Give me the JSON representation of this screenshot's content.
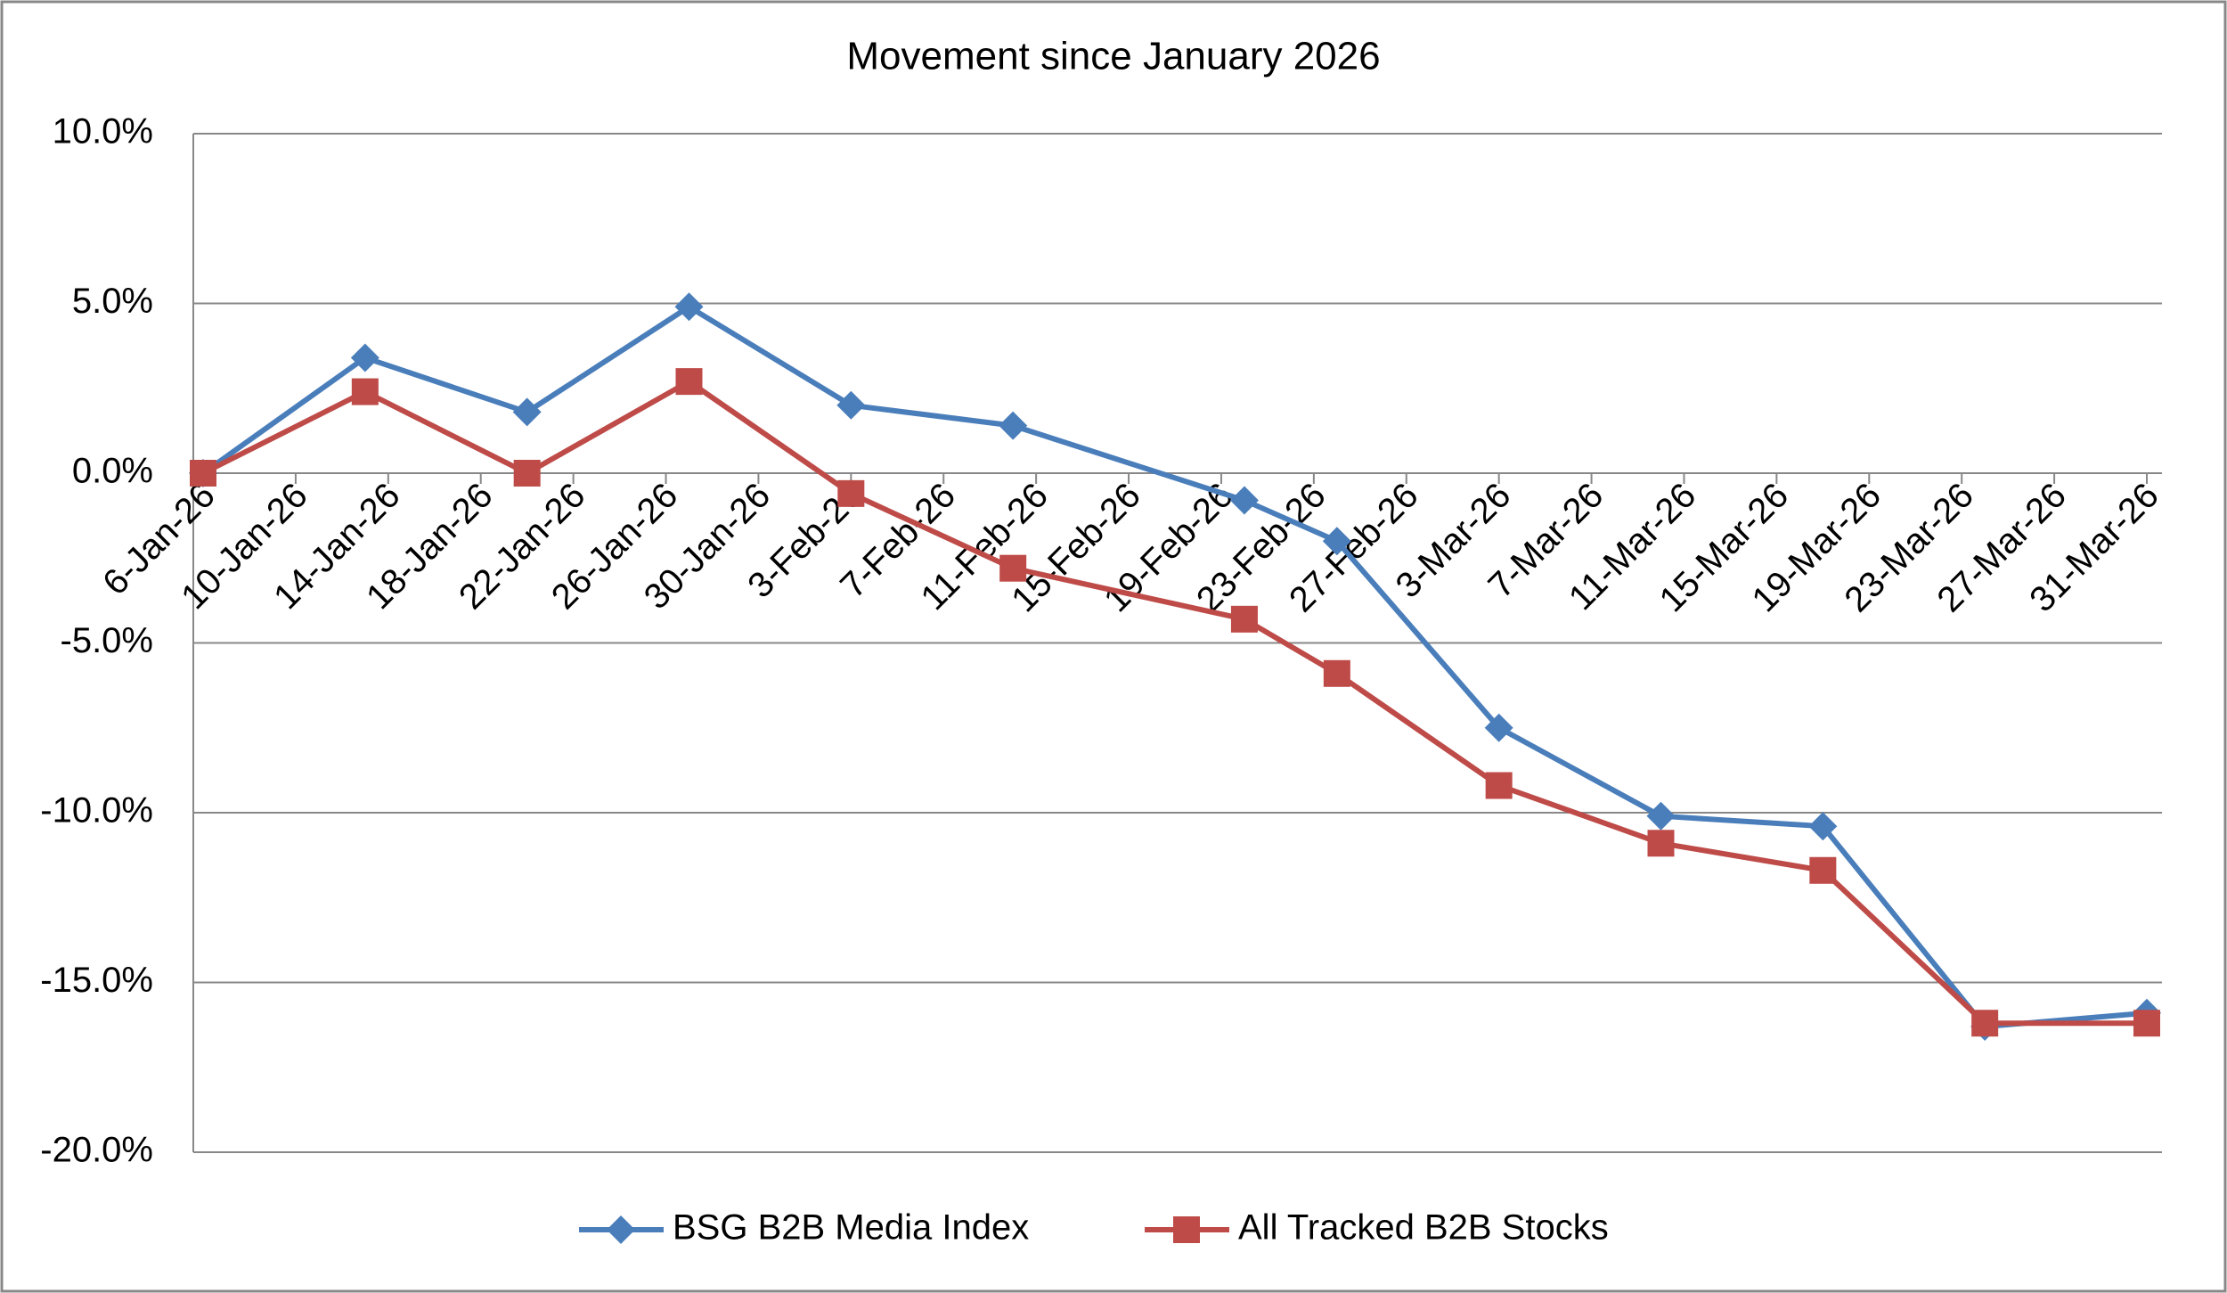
{
  "chart_data": {
    "type": "line",
    "title": "Movement since January 2026",
    "x": [
      "2026-01-06",
      "2026-01-13",
      "2026-01-20",
      "2026-01-27",
      "2026-02-03",
      "2026-02-10",
      "2026-02-20",
      "2026-02-24",
      "2026-03-03",
      "2026-03-10",
      "2026-03-17",
      "2026-03-24",
      "2026-03-31"
    ],
    "series": [
      {
        "name": "BSG B2B Media Index",
        "color": "#4a7ebb",
        "marker": "diamond",
        "values": [
          0,
          3.4,
          1.8,
          4.9,
          2.0,
          1.4,
          -0.8,
          -2.0,
          -7.5,
          -10.1,
          -10.4,
          -16.3,
          -15.9
        ]
      },
      {
        "name": "All Tracked B2B Stocks",
        "color": "#be4b48",
        "marker": "square",
        "values": [
          0,
          2.4,
          0.0,
          2.7,
          -0.6,
          -2.8,
          -4.3,
          -5.9,
          -9.2,
          -10.9,
          -11.7,
          -16.2,
          -16.2
        ]
      }
    ],
    "xlim": [
      "2026-01-06",
      "2026-03-31"
    ],
    "xticks": [
      {
        "value": "2026-01-06",
        "label": "6-Jan-26"
      },
      {
        "value": "2026-01-10",
        "label": "10-Jan-26"
      },
      {
        "value": "2026-01-14",
        "label": "14-Jan-26"
      },
      {
        "value": "2026-01-18",
        "label": "18-Jan-26"
      },
      {
        "value": "2026-01-22",
        "label": "22-Jan-26"
      },
      {
        "value": "2026-01-26",
        "label": "26-Jan-26"
      },
      {
        "value": "2026-01-30",
        "label": "30-Jan-26"
      },
      {
        "value": "2026-02-03",
        "label": "3-Feb-26"
      },
      {
        "value": "2026-02-07",
        "label": "7-Feb-26"
      },
      {
        "value": "2026-02-11",
        "label": "11-Feb-26"
      },
      {
        "value": "2026-02-15",
        "label": "15-Feb-26"
      },
      {
        "value": "2026-02-19",
        "label": "19-Feb-26"
      },
      {
        "value": "2026-02-23",
        "label": "23-Feb-26"
      },
      {
        "value": "2026-02-27",
        "label": "27-Feb-26"
      },
      {
        "value": "2026-03-03",
        "label": "3-Mar-26"
      },
      {
        "value": "2026-03-07",
        "label": "7-Mar-26"
      },
      {
        "value": "2026-03-11",
        "label": "11-Mar-26"
      },
      {
        "value": "2026-03-15",
        "label": "15-Mar-26"
      },
      {
        "value": "2026-03-19",
        "label": "19-Mar-26"
      },
      {
        "value": "2026-03-23",
        "label": "23-Mar-26"
      },
      {
        "value": "2026-03-27",
        "label": "27-Mar-26"
      },
      {
        "value": "2026-03-31",
        "label": "31-Mar-26"
      }
    ],
    "ylim": [
      -20,
      10
    ],
    "yticks": [
      {
        "value": -20,
        "label": "-20.0%"
      },
      {
        "value": -15,
        "label": "-15.0%"
      },
      {
        "value": -10,
        "label": "-10.0%"
      },
      {
        "value": -5,
        "label": "-5.0%"
      },
      {
        "value": 0,
        "label": "0.0%"
      },
      {
        "value": 5,
        "label": "5.0%"
      },
      {
        "value": 10,
        "label": "10.0%"
      }
    ],
    "grid": true,
    "legend": "bottom"
  }
}
